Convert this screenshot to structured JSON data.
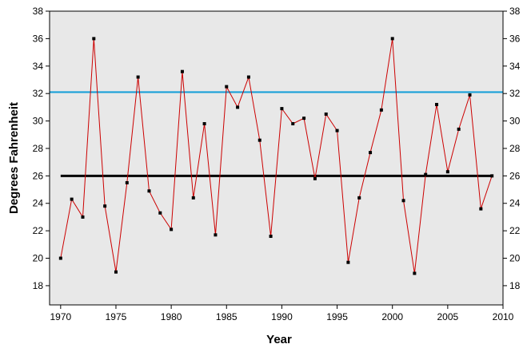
{
  "chart_data": {
    "type": "line",
    "title": "",
    "xlabel": "Year",
    "ylabel": "Degrees Fahrenheit",
    "xlim": [
      1969,
      2010
    ],
    "ylim": [
      16.6,
      38
    ],
    "x_ticks": [
      1970,
      1975,
      1980,
      1985,
      1990,
      1995,
      2000,
      2005,
      2010
    ],
    "y_ticks": [
      18,
      20,
      22,
      24,
      26,
      28,
      30,
      32,
      34,
      36,
      38
    ],
    "grid": false,
    "background": "#e8e8e8",
    "series": [
      {
        "color": "#cc0000",
        "marker_color": "#000000",
        "x": [
          1970,
          1971,
          1972,
          1973,
          1974,
          1975,
          1976,
          1977,
          1978,
          1979,
          1980,
          1981,
          1982,
          1983,
          1984,
          1985,
          1986,
          1987,
          1988,
          1989,
          1990,
          1991,
          1992,
          1993,
          1994,
          1995,
          1996,
          1997,
          1998,
          1999,
          2000,
          2001,
          2002,
          2003,
          2004,
          2005,
          2006,
          2007,
          2008,
          2009
        ],
        "y": [
          20.0,
          24.3,
          23.0,
          36.0,
          23.8,
          19.0,
          25.5,
          33.2,
          24.9,
          23.3,
          22.1,
          33.6,
          24.4,
          29.8,
          21.7,
          32.5,
          31.0,
          33.2,
          28.6,
          21.6,
          30.9,
          29.8,
          30.2,
          25.8,
          30.5,
          29.3,
          19.7,
          24.4,
          27.7,
          30.8,
          36.0,
          24.2,
          18.9,
          26.1,
          31.2,
          26.3,
          29.4,
          31.9,
          23.6,
          26.0
        ]
      }
    ],
    "reference_lines": [
      {
        "value": 26.0,
        "color": "#000000",
        "x_from": 1970,
        "x_to": 2009
      },
      {
        "value": 32.1,
        "color": "#1aa0d8"
      }
    ]
  }
}
